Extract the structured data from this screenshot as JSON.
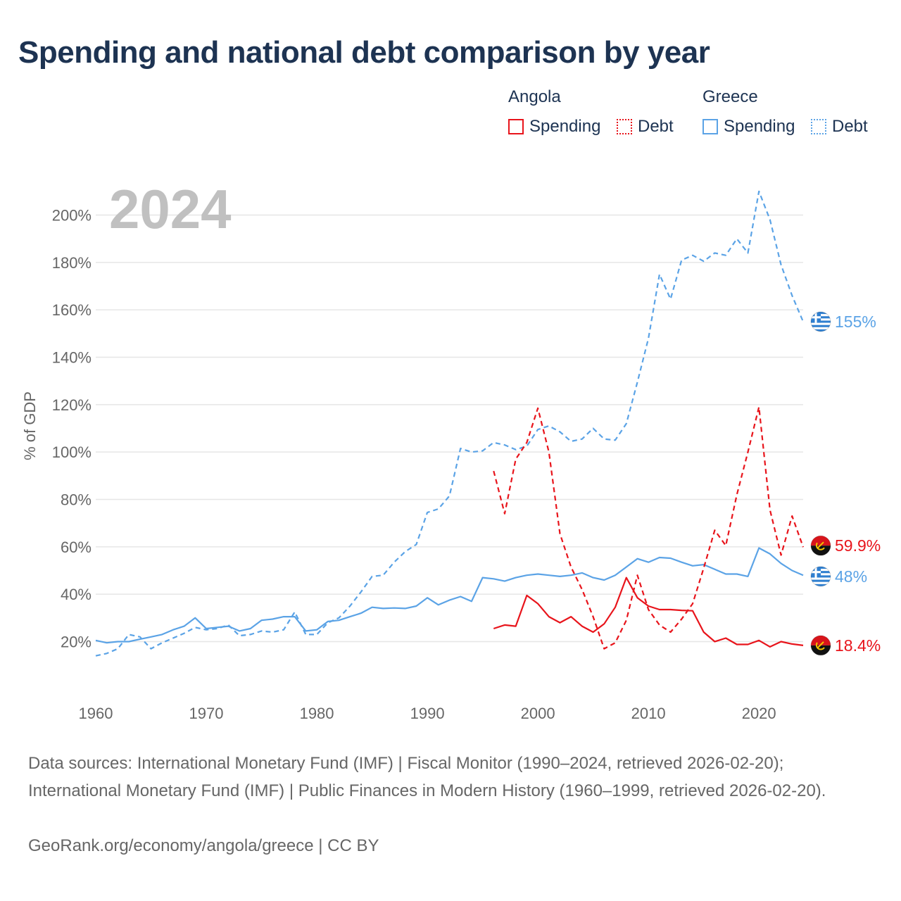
{
  "title": "Spending and national debt comparison by year",
  "legend": {
    "groups": [
      {
        "name": "Angola",
        "color": "#e8141b",
        "items": [
          {
            "label": "Spending",
            "style": "solid"
          },
          {
            "label": "Debt",
            "style": "dotted"
          }
        ]
      },
      {
        "name": "Greece",
        "color": "#5ba3e6",
        "items": [
          {
            "label": "Spending",
            "style": "solid"
          },
          {
            "label": "Debt",
            "style": "dotted"
          }
        ]
      }
    ]
  },
  "footer": {
    "sources": "Data sources: International Monetary Fund (IMF) | Fiscal Monitor (1990–2024, retrieved 2026-02-20); International Monetary Fund (IMF) | Public Finances in Modern History (1960–1999, retrieved 2026-02-20).",
    "credit": "GeoRank.org/economy/angola/greece | CC BY"
  },
  "colors": {
    "angola": "#e8141b",
    "greece": "#5ba3e6",
    "title": "#1d3352",
    "grid": "#e6e6e6",
    "axis_text": "#666666",
    "year": "#c0c0c0"
  },
  "chart_data": {
    "type": "line",
    "title": "Spending and national debt comparison by year",
    "year_label": "2024",
    "ylabel": "% of GDP",
    "xlabel": "",
    "xlim": [
      1960,
      2024
    ],
    "ylim": [
      10,
      215
    ],
    "x_ticks": [
      1960,
      1970,
      1980,
      1990,
      2000,
      2010,
      2020
    ],
    "y_ticks": [
      20,
      40,
      60,
      80,
      100,
      120,
      140,
      160,
      180,
      200
    ],
    "y_tick_labels": [
      "20%",
      "40%",
      "60%",
      "80%",
      "100%",
      "120%",
      "140%",
      "160%",
      "180%",
      "200%"
    ],
    "series": [
      {
        "name": "Greece Debt",
        "country": "Greece",
        "kind": "Debt",
        "color": "#5ba3e6",
        "dash": "dashed",
        "end_label": "155%",
        "x": [
          1960,
          1961,
          1962,
          1963,
          1964,
          1965,
          1966,
          1967,
          1968,
          1969,
          1970,
          1971,
          1972,
          1973,
          1974,
          1975,
          1976,
          1977,
          1978,
          1979,
          1980,
          1981,
          1982,
          1983,
          1984,
          1985,
          1986,
          1987,
          1988,
          1989,
          1990,
          1991,
          1992,
          1993,
          1994,
          1995,
          1996,
          1997,
          1998,
          1999,
          2000,
          2001,
          2002,
          2003,
          2004,
          2005,
          2006,
          2007,
          2008,
          2009,
          2010,
          2011,
          2012,
          2013,
          2014,
          2015,
          2016,
          2017,
          2018,
          2019,
          2020,
          2021,
          2022,
          2023,
          2024
        ],
        "values": [
          14,
          15,
          17,
          23,
          22,
          17,
          19.5,
          21.5,
          23.5,
          26,
          25,
          25.5,
          27,
          22.5,
          23,
          24.5,
          24,
          25,
          32.5,
          23,
          23,
          28,
          30,
          35,
          41,
          47.5,
          48,
          53.5,
          58,
          61,
          74.5,
          76,
          81.5,
          101.5,
          100,
          100.5,
          104,
          103,
          101,
          102.5,
          109.5,
          111,
          108.5,
          104.5,
          105.5,
          110,
          105.5,
          105,
          112,
          129.5,
          148,
          175,
          164.5,
          181,
          183,
          180.5,
          184,
          183,
          190,
          184,
          210,
          198,
          179,
          166,
          155
        ]
      },
      {
        "name": "Greece Spending",
        "country": "Greece",
        "kind": "Spending",
        "color": "#5ba3e6",
        "dash": "solid",
        "end_label": "48%",
        "x": [
          1960,
          1961,
          1962,
          1963,
          1964,
          1965,
          1966,
          1967,
          1968,
          1969,
          1970,
          1971,
          1972,
          1973,
          1974,
          1975,
          1976,
          1977,
          1978,
          1979,
          1980,
          1981,
          1982,
          1983,
          1984,
          1985,
          1986,
          1987,
          1988,
          1989,
          1990,
          1991,
          1992,
          1993,
          1994,
          1995,
          1996,
          1997,
          1998,
          1999,
          2000,
          2001,
          2002,
          2003,
          2004,
          2005,
          2006,
          2007,
          2008,
          2009,
          2010,
          2011,
          2012,
          2013,
          2014,
          2015,
          2016,
          2017,
          2018,
          2019,
          2020,
          2021,
          2022,
          2023,
          2024
        ],
        "values": [
          20.5,
          19.5,
          20,
          20,
          21,
          22,
          23,
          25,
          26.5,
          30,
          25.5,
          26,
          26.5,
          24.5,
          25.5,
          29,
          29.5,
          30.5,
          30.5,
          24.5,
          25,
          28.5,
          29,
          30.5,
          32,
          34.5,
          34,
          34.2,
          34,
          35,
          38.5,
          35.5,
          37.5,
          39,
          37,
          47,
          46.5,
          45.5,
          47,
          48,
          48.5,
          48,
          47.5,
          48,
          49,
          47,
          46,
          48,
          51.5,
          55,
          53.5,
          55.5,
          55.2,
          53.5,
          52,
          52.5,
          50.5,
          48.5,
          48.5,
          47.5,
          59.5,
          57,
          53,
          50,
          48
        ]
      },
      {
        "name": "Angola Debt",
        "country": "Angola",
        "kind": "Debt",
        "color": "#e8141b",
        "dash": "dashed",
        "end_label": "59.9%",
        "x": [
          1996,
          1997,
          1998,
          1999,
          2000,
          2001,
          2002,
          2003,
          2004,
          2005,
          2006,
          2007,
          2008,
          2009,
          2010,
          2011,
          2012,
          2013,
          2014,
          2015,
          2016,
          2017,
          2018,
          2019,
          2020,
          2021,
          2022,
          2023,
          2024
        ],
        "values": [
          92,
          74,
          97,
          104,
          118.5,
          100,
          65.5,
          51.5,
          42,
          30.5,
          17,
          19.5,
          29,
          48,
          33.5,
          27,
          24,
          29.5,
          36,
          51,
          67,
          60.5,
          82,
          100,
          119,
          75.5,
          56.5,
          73,
          59.9
        ]
      },
      {
        "name": "Angola Spending",
        "country": "Angola",
        "kind": "Spending",
        "color": "#e8141b",
        "dash": "solid",
        "end_label": "18.4%",
        "x": [
          1996,
          1997,
          1998,
          1999,
          2000,
          2001,
          2002,
          2003,
          2004,
          2005,
          2006,
          2007,
          2008,
          2009,
          2010,
          2011,
          2012,
          2013,
          2014,
          2015,
          2016,
          2017,
          2018,
          2019,
          2020,
          2021,
          2022,
          2023,
          2024
        ],
        "values": [
          25.5,
          27,
          26.5,
          39.5,
          36,
          30.5,
          28,
          30.5,
          26.5,
          24,
          27.5,
          34.5,
          47,
          38.5,
          35,
          33.5,
          33.5,
          33.2,
          33,
          24,
          20,
          21.5,
          18.8,
          18.8,
          20.5,
          17.8,
          20,
          19,
          18.4
        ]
      }
    ]
  }
}
